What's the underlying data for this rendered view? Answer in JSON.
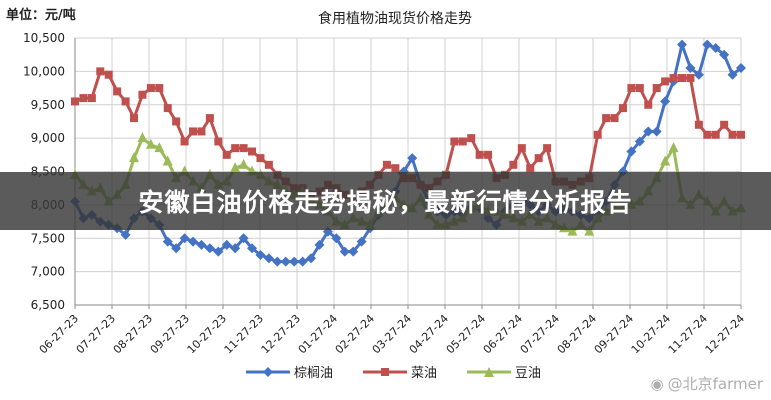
{
  "unit_label": "单位：元/吨",
  "banner_text": "安徽白油价格走势揭秘，最新行情分析报告",
  "watermark": "@北京farmer",
  "chart_data": {
    "type": "line",
    "title": "食用植物油现货价格走势",
    "ylim": [
      6500,
      10500
    ],
    "yticks": [
      "10,500",
      "10,000",
      "9,500",
      "9,000",
      "8,500",
      "8,000",
      "7,500",
      "7,000",
      "6,500"
    ],
    "ytick_values": [
      10500,
      10000,
      9500,
      9000,
      8500,
      8000,
      7500,
      7000,
      6500
    ],
    "xtick_labels": [
      "06-27-23",
      "07-27-23",
      "08-27-23",
      "09-27-23",
      "10-27-23",
      "11-27-23",
      "12-27-23",
      "01-27-24",
      "02-27-24",
      "03-27-24",
      "04-27-24",
      "05-27-24",
      "06-27-24",
      "07-27-24",
      "08-27-24",
      "09-27-24",
      "10-27-24",
      "11-27-24",
      "12-27-24"
    ],
    "grid": true,
    "legend_position": "bottom",
    "series": [
      {
        "name": "棕榈油",
        "color": "#4472c4",
        "marker": "diamond",
        "values": [
          8050,
          7800,
          7850,
          7750,
          7700,
          7650,
          7550,
          7800,
          7900,
          7800,
          7700,
          7450,
          7350,
          7500,
          7450,
          7400,
          7350,
          7300,
          7400,
          7350,
          7500,
          7350,
          7250,
          7200,
          7150,
          7150,
          7150,
          7150,
          7200,
          7400,
          7600,
          7500,
          7300,
          7300,
          7450,
          7650,
          7850,
          8000,
          8200,
          8500,
          8700,
          8300,
          8050,
          7900,
          7850,
          7900,
          7850,
          7950,
          7950,
          7800,
          7700,
          7900,
          8000,
          8100,
          8000,
          7900,
          8000,
          7900,
          7950,
          7900,
          7850,
          7800,
          7900,
          8050,
          8300,
          8500,
          8800,
          8950,
          9100,
          9100,
          9550,
          9850,
          10400,
          10050,
          9950,
          10400,
          10350,
          10250,
          9950,
          10050
        ]
      },
      {
        "name": "菜油",
        "color": "#c0504d",
        "marker": "square",
        "values": [
          9550,
          9600,
          9600,
          10000,
          9950,
          9700,
          9550,
          9300,
          9650,
          9750,
          9750,
          9450,
          9250,
          8950,
          9100,
          9100,
          9300,
          8950,
          8750,
          8850,
          8850,
          8800,
          8700,
          8600,
          8450,
          8350,
          8250,
          8250,
          8150,
          8200,
          8300,
          8250,
          8150,
          8100,
          8200,
          8300,
          8450,
          8600,
          8550,
          8400,
          8400,
          8300,
          8250,
          8350,
          8450,
          8950,
          8950,
          9000,
          8750,
          8750,
          8400,
          8450,
          8600,
          8850,
          8550,
          8700,
          8850,
          8350,
          8350,
          8300,
          8350,
          8400,
          9050,
          9300,
          9300,
          9450,
          9750,
          9750,
          9500,
          9750,
          9850,
          9900,
          9900,
          9900,
          9200,
          9050,
          9050,
          9200,
          9050,
          9050
        ]
      },
      {
        "name": "豆油",
        "color": "#9bbb59",
        "marker": "triangle",
        "values": [
          8450,
          8300,
          8200,
          8250,
          8050,
          8150,
          8300,
          8700,
          9000,
          8900,
          8850,
          8650,
          8400,
          8500,
          8350,
          8250,
          8450,
          8300,
          8350,
          8550,
          8600,
          8500,
          8450,
          8350,
          8300,
          8200,
          8150,
          8200,
          8050,
          8000,
          7900,
          7750,
          7700,
          7800,
          7750,
          7700,
          7900,
          8050,
          8100,
          8000,
          7950,
          8100,
          7850,
          7700,
          7700,
          7750,
          7800,
          7950,
          8000,
          7900,
          7900,
          7850,
          7800,
          7750,
          7850,
          7750,
          7800,
          7700,
          7650,
          7600,
          7700,
          7600,
          7800,
          7900,
          7950,
          7950,
          8000,
          8050,
          8200,
          8400,
          8650,
          8850,
          8100,
          8000,
          8150,
          8050,
          7900,
          8050,
          7900,
          7950
        ]
      }
    ]
  }
}
